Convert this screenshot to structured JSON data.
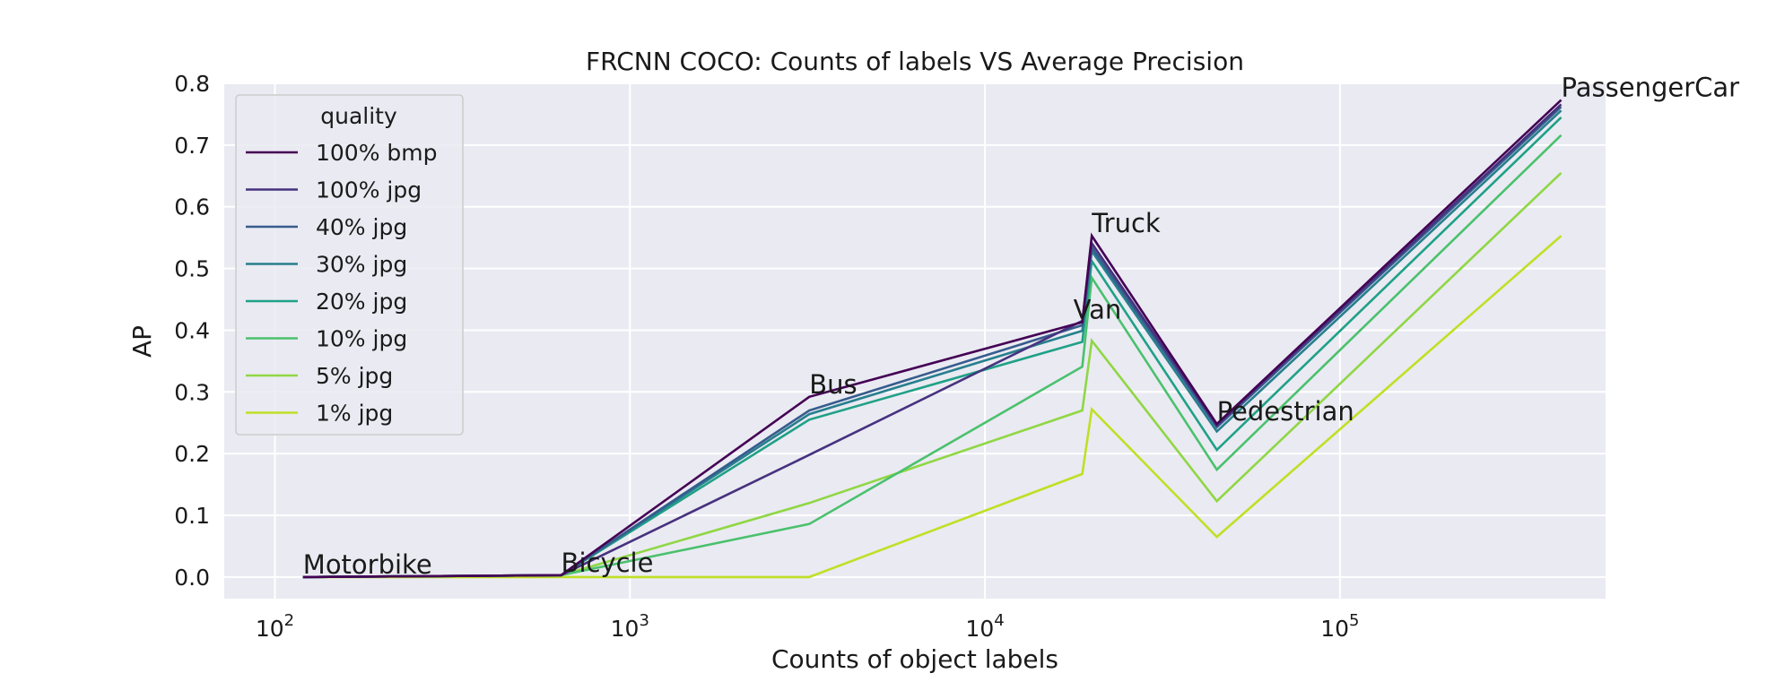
{
  "chart_data": {
    "type": "line",
    "title": "FRCNN COCO: Counts of labels VS Average Precision",
    "xlabel": "Counts of object labels",
    "ylabel": "AP",
    "x_scale": "log",
    "xlim": [
      72,
      560000
    ],
    "ylim": [
      -0.035,
      0.8
    ],
    "yticks": [
      "0.0",
      "0.1",
      "0.2",
      "0.3",
      "0.4",
      "0.5",
      "0.6",
      "0.7",
      "0.8"
    ],
    "xticks": [
      {
        "base": "10",
        "exp": "2",
        "value": 100
      },
      {
        "base": "10",
        "exp": "3",
        "value": 1000
      },
      {
        "base": "10",
        "exp": "4",
        "value": 10000
      },
      {
        "base": "10",
        "exp": "5",
        "value": 100000
      }
    ],
    "grid": true,
    "legend": {
      "title": "quality",
      "position": "top-left"
    },
    "categories": [
      "Motorbike",
      "Bicycle",
      "Bus",
      "Van",
      "Truck",
      "Pedestrian",
      "PassengerCar"
    ],
    "x": [
      120,
      640,
      3200,
      18800,
      20000,
      45000,
      420000
    ],
    "series": [
      {
        "name": "100% bmp",
        "color": "#440154",
        "values": [
          0.0,
          0.003,
          0.292,
          0.413,
          0.553,
          0.248,
          0.773
        ]
      },
      {
        "name": "100% jpg",
        "color": "#46327e",
        "values": [
          0.0,
          0.003,
          0.198,
          0.415,
          0.541,
          0.246,
          0.766
        ]
      },
      {
        "name": "40% jpg",
        "color": "#365c8d",
        "values": [
          0.0,
          0.003,
          0.27,
          0.408,
          0.534,
          0.243,
          0.762
        ]
      },
      {
        "name": "30% jpg",
        "color": "#277f8e",
        "values": [
          0.0,
          0.003,
          0.264,
          0.399,
          0.528,
          0.236,
          0.756
        ]
      },
      {
        "name": "20% jpg",
        "color": "#1fa187",
        "values": [
          0.0,
          0.003,
          0.255,
          0.381,
          0.512,
          0.206,
          0.745
        ]
      },
      {
        "name": "10% jpg",
        "color": "#4ac16d",
        "values": [
          0.0,
          0.003,
          0.086,
          0.341,
          0.485,
          0.174,
          0.716
        ]
      },
      {
        "name": "5% jpg",
        "color": "#8fd744",
        "values": [
          0.0,
          0.003,
          0.12,
          0.27,
          0.383,
          0.123,
          0.655
        ]
      },
      {
        "name": "1% jpg",
        "color": "#c0df25",
        "values": [
          0.0,
          0.0,
          0.0,
          0.167,
          0.272,
          0.065,
          0.553
        ]
      }
    ]
  }
}
